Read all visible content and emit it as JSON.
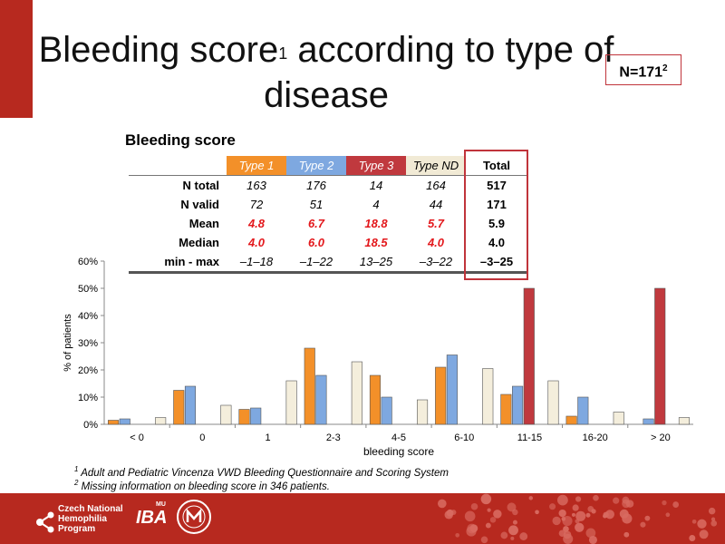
{
  "title": {
    "main": "Bleeding score",
    "sup": "1",
    "rest": " according to type of disease"
  },
  "n_box": {
    "label": "N=171",
    "sup": "2"
  },
  "table": {
    "heading": "Bleeding score",
    "columns": [
      "Type 1",
      "Type 2",
      "Type 3",
      "Type ND",
      "Total"
    ],
    "rows": [
      {
        "label": "N total",
        "values": [
          "163",
          "176",
          "14",
          "164",
          "517"
        ]
      },
      {
        "label": "N valid",
        "values": [
          "72",
          "51",
          "4",
          "44",
          "171"
        ]
      },
      {
        "label": "Mean",
        "values": [
          "4.8",
          "6.7",
          "18.8",
          "5.7",
          "5.9"
        ]
      },
      {
        "label": "Median",
        "values": [
          "4.0",
          "6.0",
          "18.5",
          "4.0",
          "4.0"
        ]
      },
      {
        "label": "min - max",
        "values": [
          "–1–18",
          "–1–22",
          "13–25",
          "–3–22",
          "–3–25"
        ]
      }
    ]
  },
  "chart_data": {
    "type": "bar",
    "categories": [
      "< 0",
      "0",
      "1",
      "2-3",
      "4-5",
      "6-10",
      "11-15",
      "16-20",
      "> 20"
    ],
    "series": [
      {
        "name": "Type 1",
        "color": "#f39029",
        "values": [
          1.5,
          12.5,
          5.5,
          28,
          18,
          21,
          11,
          3,
          0
        ]
      },
      {
        "name": "Type 2",
        "color": "#7ea8e0",
        "values": [
          2,
          14,
          6,
          18,
          10,
          25.5,
          14,
          10,
          2
        ]
      },
      {
        "name": "Type 3",
        "color": "#c0393e",
        "values": [
          0,
          0,
          0,
          0,
          0,
          0,
          50,
          0,
          50
        ]
      },
      {
        "name": "Type ND",
        "color": "#f4eedc",
        "values": [
          2.5,
          7,
          16,
          23,
          9,
          20.5,
          16,
          4.5,
          2.5
        ]
      }
    ],
    "xlabel": "bleeding score",
    "ylabel": "% of patients",
    "yticks": [
      "0%",
      "10%",
      "20%",
      "30%",
      "40%",
      "50%",
      "60%"
    ],
    "ylim": [
      0,
      60
    ]
  },
  "footnotes": [
    {
      "sup": "1",
      "text": " Adult and Pediatric Vincenza VWD Bleeding Questionnaire and Scoring System"
    },
    {
      "sup": "2",
      "text": " Missing information on bleeding score in 346 patients."
    }
  ],
  "footer": {
    "org_lines": [
      "Czech National",
      "Hemophilia",
      "Program"
    ],
    "iba": "IBA",
    "iba_mu": "MU",
    "band_color": "#b7291f"
  }
}
